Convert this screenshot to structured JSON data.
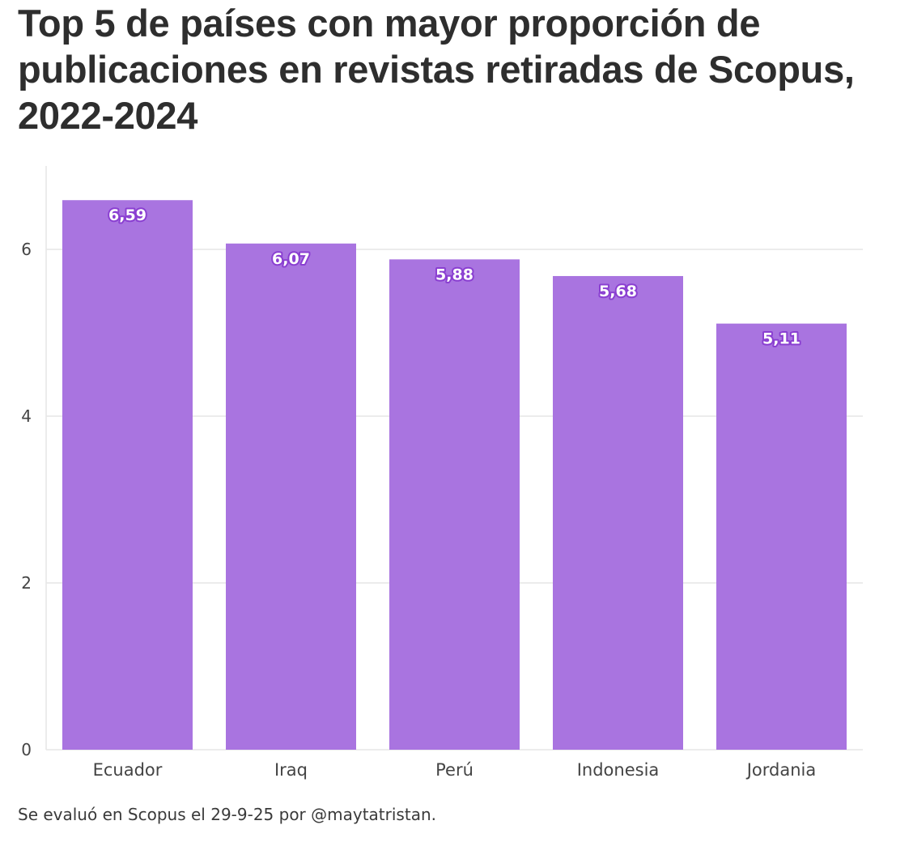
{
  "chart_data": {
    "type": "bar",
    "title": "Top 5 de países con mayor proporción de publicaciones en revistas retiradas de Scopus, 2022-2024",
    "categories": [
      "Ecuador",
      "Iraq",
      "Perú",
      "Indonesia",
      "Jordania"
    ],
    "values": [
      6.59,
      6.07,
      5.88,
      5.68,
      5.11
    ],
    "data_labels": [
      "6,59",
      "6,07",
      "5,88",
      "5,68",
      "5,11"
    ],
    "ylim": [
      0,
      7
    ],
    "yticks": [
      0,
      2,
      4,
      6
    ],
    "xlabel": "",
    "ylabel": "",
    "grid": true,
    "legend": "none",
    "caption": "Se evaluó en Scopus el 29-9-25 por @maytatristan."
  },
  "colors": {
    "bar": "#a974e0",
    "grid": "#e6e6e6",
    "label_outline": "#8a3fd1"
  }
}
